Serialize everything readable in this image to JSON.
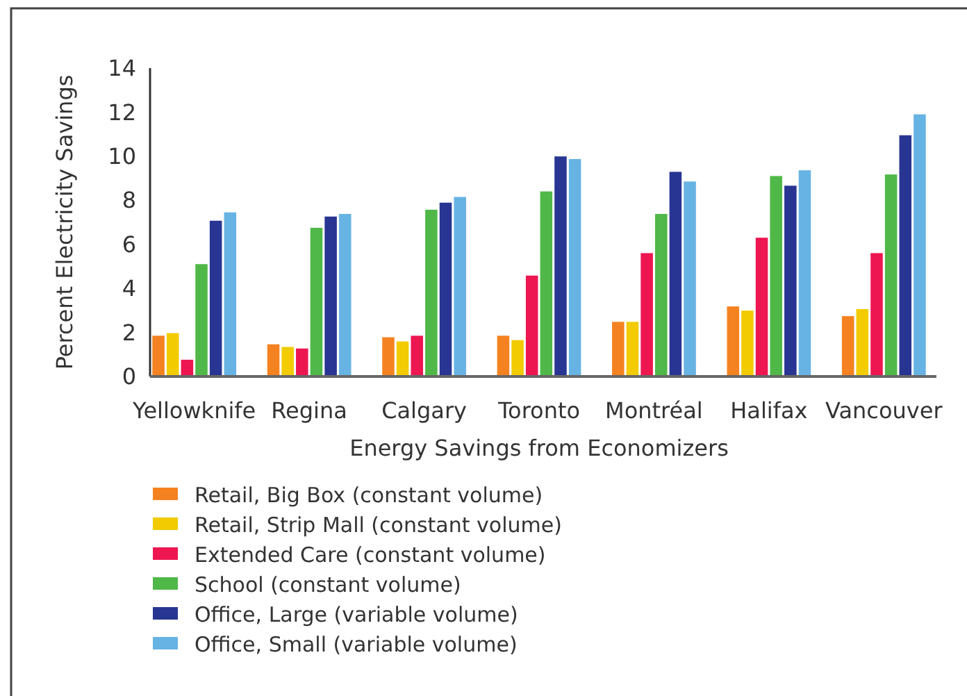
{
  "chart_data": {
    "type": "bar",
    "xlabel": "Energy Savings from Economizers",
    "ylabel": "Percent Electricity Savings",
    "categories": [
      "Yellowknife",
      "Regina",
      "Calgary",
      "Toronto",
      "Montréal",
      "Halifax",
      "Vancouver"
    ],
    "series": [
      {
        "name": "Retail, Big Box (constant volume)",
        "color": "#f58220",
        "values": [
          1.85,
          1.46,
          1.78,
          1.85,
          2.48,
          3.18,
          2.74
        ]
      },
      {
        "name": "Retail, Strip Mall (constant volume)",
        "color": "#f2cb00",
        "values": [
          1.97,
          1.34,
          1.59,
          1.65,
          2.48,
          2.99,
          3.06
        ]
      },
      {
        "name": "Extended Care (constant volume)",
        "color": "#ed1651",
        "values": [
          0.76,
          1.27,
          1.85,
          4.58,
          5.6,
          6.3,
          5.6
        ]
      },
      {
        "name": "School (constant volume)",
        "color": "#50b848",
        "values": [
          5.1,
          6.75,
          7.57,
          8.4,
          7.38,
          9.1,
          9.17
        ]
      },
      {
        "name": "Office, Large (variable volume)",
        "color": "#283593",
        "values": [
          7.07,
          7.26,
          7.89,
          9.99,
          9.29,
          8.66,
          10.95
        ]
      },
      {
        "name": "Office, Small (variable volume)",
        "color": "#67b3e3",
        "values": [
          7.45,
          7.38,
          8.15,
          9.87,
          8.85,
          9.36,
          11.9
        ]
      }
    ],
    "ylim": [
      0,
      14
    ],
    "yticks": [
      0,
      2,
      4,
      6,
      8,
      10,
      12,
      14
    ],
    "grid": false,
    "legend": "bottom left"
  }
}
